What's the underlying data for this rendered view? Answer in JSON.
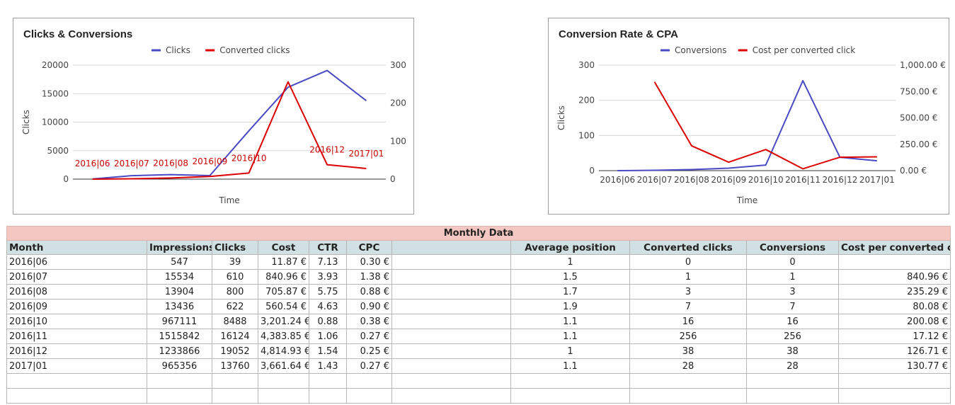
{
  "chart_data": [
    {
      "type": "line",
      "title": "Clicks & Conversions",
      "categories": [
        "2016|06",
        "2016|07",
        "2016|08",
        "2016|09",
        "2016|10",
        "2016|11",
        "2016|12",
        "2017|01"
      ],
      "xlabel": "Time",
      "ylabel": "Clicks",
      "ylim": [
        0,
        20000
      ],
      "y_ticks": [
        "20000",
        "15000",
        "10000",
        "5000",
        "0"
      ],
      "y2lim": [
        0,
        300
      ],
      "y2_ticks": [
        "300",
        "200",
        "100",
        "0"
      ],
      "legend_position": "top",
      "series": [
        {
          "name": "Clicks",
          "axis": "left",
          "color": "#4a4ac4",
          "values": [
            39,
            610,
            800,
            622,
            8488,
            16124,
            19052,
            13760
          ]
        },
        {
          "name": "Converted clicks",
          "axis": "right",
          "color": "#dd0000",
          "values": [
            0,
            1,
            3,
            7,
            16,
            256,
            38,
            28
          ]
        }
      ],
      "data_labels": [
        "2016|06",
        "2016|07",
        "2016|08",
        "2016|09",
        "2016|10",
        "",
        "2016|12",
        "2017|01"
      ]
    },
    {
      "type": "line",
      "title": "Conversion Rate & CPA",
      "categories": [
        "2016|06",
        "2016|07",
        "2016|08",
        "2016|09",
        "2016|10",
        "2016|11",
        "2016|12",
        "2017|01"
      ],
      "xlabel": "Time",
      "ylabel": "Clicks",
      "ylim": [
        0,
        300
      ],
      "y_ticks": [
        "300",
        "200",
        "100",
        "0"
      ],
      "y2lim": [
        0,
        1000
      ],
      "y2_ticks": [
        "1,000.00 €",
        "750.00 €",
        "500.00 €",
        "250.00 €",
        "0.00 €"
      ],
      "legend_position": "top",
      "series": [
        {
          "name": "Conversions",
          "axis": "left",
          "color": "#4a4ac4",
          "values": [
            0,
            1,
            3,
            7,
            16,
            256,
            38,
            28
          ]
        },
        {
          "name": "Cost per converted click",
          "axis": "right",
          "color": "#dd0000",
          "values": [
            null,
            840.96,
            235.29,
            80.08,
            200.08,
            17.12,
            126.71,
            130.77
          ]
        }
      ]
    }
  ],
  "table": {
    "title": "Monthly Data",
    "headers": [
      "Month",
      "Impressions",
      "Clicks",
      "Cost",
      "CTR",
      "CPC",
      "",
      "",
      "Average position",
      "Converted clicks",
      "Conversions",
      "Cost per converted click"
    ],
    "rows": [
      [
        "2016|06",
        "547",
        "39",
        "11.87 €",
        "7.13",
        "0.30 €",
        "",
        "",
        "1",
        "0",
        "0",
        ""
      ],
      [
        "2016|07",
        "15534",
        "610",
        "840.96 €",
        "3.93",
        "1.38 €",
        "",
        "",
        "1.5",
        "1",
        "1",
        "840.96 €"
      ],
      [
        "2016|08",
        "13904",
        "800",
        "705.87 €",
        "5.75",
        "0.88 €",
        "",
        "",
        "1.7",
        "3",
        "3",
        "235.29 €"
      ],
      [
        "2016|09",
        "13436",
        "622",
        "560.54 €",
        "4.63",
        "0.90 €",
        "",
        "",
        "1.9",
        "7",
        "7",
        "80.08 €"
      ],
      [
        "2016|10",
        "967111",
        "8488",
        "3,201.24 €",
        "0.88",
        "0.38 €",
        "",
        "",
        "1.1",
        "16",
        "16",
        "200.08 €"
      ],
      [
        "2016|11",
        "1515842",
        "16124",
        "4,383.85 €",
        "1.06",
        "0.27 €",
        "",
        "",
        "1.1",
        "256",
        "256",
        "17.12 €"
      ],
      [
        "2016|12",
        "1233866",
        "19052",
        "4,814.93 €",
        "1.54",
        "0.25 €",
        "",
        "",
        "1",
        "38",
        "38",
        "126.71 €"
      ],
      [
        "2017|01",
        "965356",
        "13760",
        "3,661.64 €",
        "1.43",
        "0.27 €",
        "",
        "",
        "1.1",
        "28",
        "28",
        "130.77 €"
      ]
    ],
    "empty_rows": 2
  }
}
